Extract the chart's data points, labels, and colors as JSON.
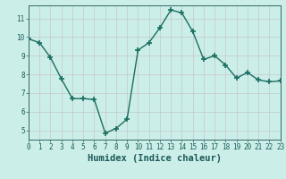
{
  "x": [
    0,
    1,
    2,
    3,
    4,
    5,
    6,
    7,
    8,
    9,
    10,
    11,
    12,
    13,
    14,
    15,
    16,
    17,
    18,
    19,
    20,
    21,
    22,
    23
  ],
  "y": [
    9.9,
    9.7,
    8.9,
    7.75,
    6.7,
    6.7,
    6.65,
    4.85,
    5.1,
    5.6,
    9.3,
    9.7,
    10.5,
    11.45,
    11.3,
    10.3,
    8.8,
    9.0,
    8.5,
    7.8,
    8.1,
    7.7,
    7.6,
    7.65
  ],
  "xlim": [
    0,
    23
  ],
  "ylim": [
    4.5,
    11.7
  ],
  "yticks": [
    5,
    6,
    7,
    8,
    9,
    10,
    11
  ],
  "xticks": [
    0,
    1,
    2,
    3,
    4,
    5,
    6,
    7,
    8,
    9,
    10,
    11,
    12,
    13,
    14,
    15,
    16,
    17,
    18,
    19,
    20,
    21,
    22,
    23
  ],
  "xlabel": "Humidex (Indice chaleur)",
  "line_color": "#1a6e62",
  "marker": "+",
  "marker_size": 4,
  "marker_lw": 1.2,
  "line_width": 1.0,
  "bg_color": "#cceee8",
  "plot_bg_color": "#cceee8",
  "grid_color": "#c0b8c0",
  "grid_alpha": 0.7,
  "spine_color": "#336666",
  "label_color": "#1a5a5a",
  "tick_label_fontsize": 5.5,
  "xlabel_fontsize": 7.5
}
